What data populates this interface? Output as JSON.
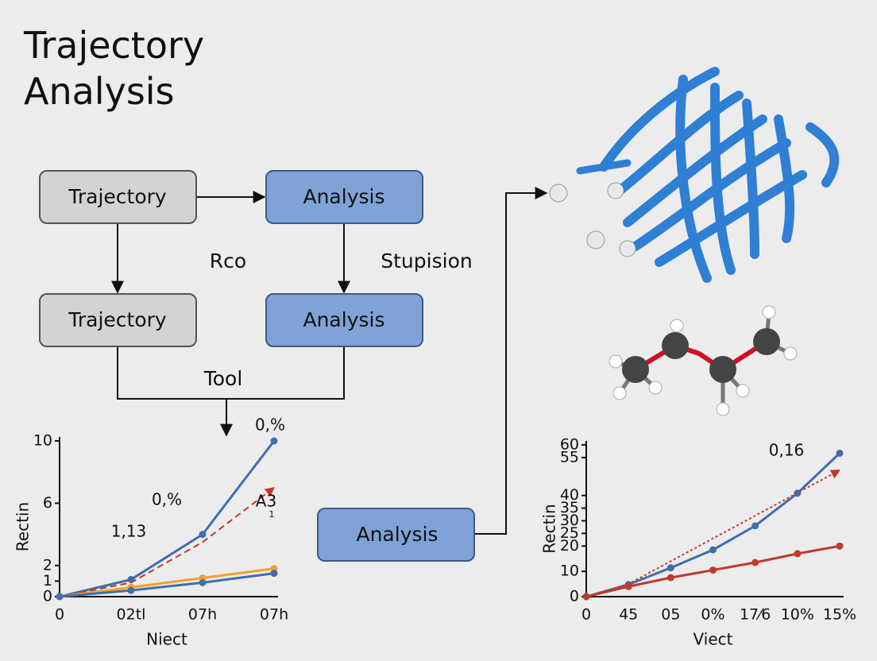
{
  "title": "Trajectory Analysis",
  "nodes": [
    {
      "label": "Trajectory"
    },
    {
      "label": "Analysis"
    },
    {
      "label": "Trajectory"
    },
    {
      "label": "Analysis"
    },
    {
      "label": "Analysis"
    }
  ],
  "edge_labels": [
    "Rco",
    "Stupision",
    "Tool"
  ],
  "chart_data": [
    {
      "type": "line",
      "x_label": "Niect",
      "y_label": "Rectin",
      "categories": [
        "0",
        "02tl",
        "07h",
        "07h"
      ],
      "ylim": [
        0,
        10
      ],
      "yticks": [
        0,
        1,
        2,
        6,
        10
      ],
      "series": [
        {
          "color": "#3f6fad",
          "values": [
            0,
            1.1,
            4,
            10
          ]
        },
        {
          "color": "#c0392b",
          "dashed": true,
          "values": [
            0,
            0.9,
            3.5,
            7
          ]
        },
        {
          "color": "#f0a030",
          "values": [
            0,
            0.6,
            1.2,
            1.8
          ]
        },
        {
          "color": "#3f6fad",
          "values": [
            0,
            0.4,
            0.9,
            1.5
          ]
        }
      ],
      "annotations": [
        "0,%",
        "0,%",
        "1,13",
        "A3",
        "1"
      ]
    },
    {
      "type": "line",
      "x_label": "Viect",
      "y_label": "Rectin",
      "categories": [
        "0",
        "45",
        "05",
        "0%",
        "17⁄6",
        "10%",
        "15%"
      ],
      "ylim": [
        0,
        60
      ],
      "yticks": [
        0,
        10,
        20,
        25,
        30,
        35,
        40,
        55,
        60
      ],
      "series": [
        {
          "color": "#3f6fad",
          "values": [
            0,
            4.8,
            11.4,
            18.5,
            28,
            40.9,
            56.7
          ]
        },
        {
          "color": "#c0392b",
          "values": [
            0,
            4,
            7.5,
            10.5,
            13.5,
            17,
            20
          ]
        },
        {
          "color": "#c0392b",
          "dashed": true,
          "values": [
            0,
            5,
            14,
            23,
            32,
            41,
            50
          ]
        }
      ],
      "annotations": [
        "0,16"
      ]
    }
  ]
}
